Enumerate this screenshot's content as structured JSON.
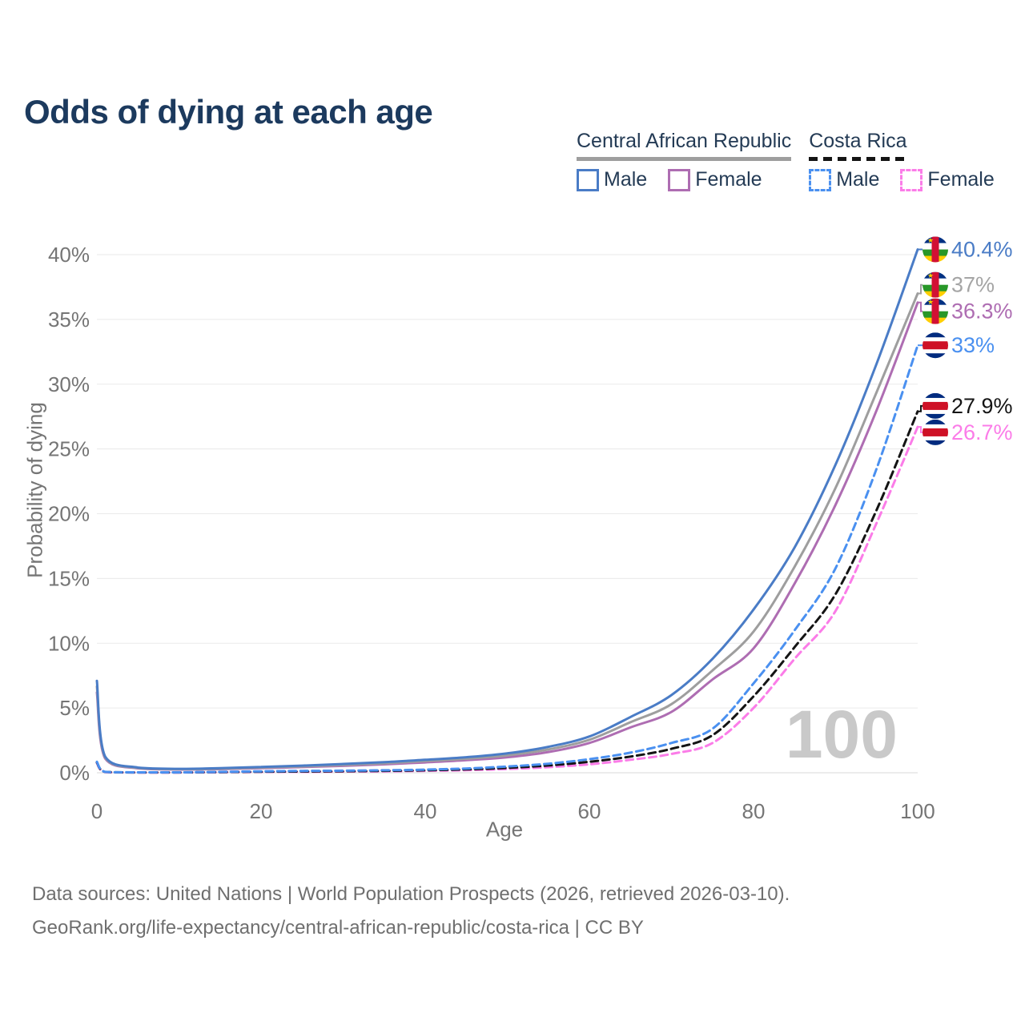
{
  "title": "Odds of dying at each age",
  "legend": {
    "groups": [
      {
        "label": "Central African Republic",
        "items": [
          {
            "label": "Male",
            "swatch": "caf_male"
          },
          {
            "label": "Female",
            "swatch": "caf_female"
          }
        ]
      },
      {
        "label": "Costa Rica",
        "items": [
          {
            "label": "Male",
            "swatch": "cri_male"
          },
          {
            "label": "Female",
            "swatch": "cri_female"
          }
        ]
      }
    ]
  },
  "watermark": "100",
  "footer": {
    "line1": "Data sources: United Nations | World Population Prospects (2026, retrieved 2026-03-10).",
    "line2": "GeoRank.org/life-expectancy/central-african-republic/costa-rica | CC BY"
  },
  "colors": {
    "caf_male": "#4a7cc6",
    "caf_both": "#9e9e9e",
    "caf_female": "#ae6db2",
    "cri_male": "#4a90f0",
    "cri_both": "#141414",
    "cri_female": "#fb7ce8",
    "title": "#1c3a5e",
    "axis_text": "#757575",
    "grid": "#eaeaea",
    "zero_grid": "#d8d8d8",
    "watermark": "#c9c9c9",
    "label_gray": "#a5a5a5"
  },
  "flags": {
    "caf": {
      "stripes": [
        "#003082",
        "#ffffff",
        "#289728",
        "#ffce00"
      ],
      "band": "#d21034",
      "star": "#ffce00"
    },
    "cri": {
      "stripes": [
        "#002b7f",
        "#ffffff",
        "#ce1126",
        "#ffffff",
        "#002b7f"
      ]
    }
  },
  "chart_data": {
    "type": "line",
    "title": "Odds of dying at each age",
    "xlabel": "Age",
    "ylabel": "Probability of dying",
    "xlim": [
      0,
      100
    ],
    "ylim": [
      0,
      40.5
    ],
    "x_ticks": [
      0,
      20,
      40,
      60,
      80,
      100
    ],
    "y_ticks": [
      0,
      5,
      10,
      15,
      20,
      25,
      30,
      35,
      40
    ],
    "y_tick_suffix": "%",
    "grid": true,
    "legend_position": "top-right",
    "x": [
      0,
      1,
      5,
      10,
      15,
      20,
      25,
      30,
      35,
      40,
      45,
      50,
      55,
      60,
      65,
      70,
      75,
      80,
      85,
      90,
      95,
      100
    ],
    "series": [
      {
        "id": "caf-male",
        "name": "Central African Republic — Male",
        "flag": "caf",
        "dashed": false,
        "color": "#4a7cc6",
        "label_color": "#4a7cc6",
        "end_label": "40.4%",
        "values": [
          7.1,
          1.25,
          0.4,
          0.3,
          0.35,
          0.45,
          0.55,
          0.68,
          0.82,
          1.0,
          1.2,
          1.5,
          2.0,
          2.8,
          4.3,
          6.0,
          8.8,
          12.6,
          17.4,
          23.8,
          31.6,
          40.4
        ]
      },
      {
        "id": "caf-both",
        "name": "Central African Republic — Both sexes",
        "flag": "caf",
        "dashed": false,
        "color": "#9e9e9e",
        "label_color": "#a5a5a5",
        "end_label": "37%",
        "values": [
          6.65,
          1.18,
          0.37,
          0.27,
          0.31,
          0.4,
          0.49,
          0.6,
          0.73,
          0.9,
          1.08,
          1.35,
          1.8,
          2.55,
          3.9,
          5.3,
          7.9,
          10.9,
          15.9,
          22.0,
          29.4,
          37.0
        ]
      },
      {
        "id": "caf-female",
        "name": "Central African Republic — Female",
        "flag": "caf",
        "dashed": false,
        "color": "#ae6db2",
        "label_color": "#ae6db2",
        "end_label": "36.3%",
        "values": [
          6.2,
          1.1,
          0.34,
          0.25,
          0.28,
          0.35,
          0.44,
          0.53,
          0.65,
          0.8,
          0.97,
          1.2,
          1.6,
          2.3,
          3.5,
          4.7,
          7.2,
          9.6,
          14.6,
          20.7,
          28.0,
          36.3
        ]
      },
      {
        "id": "cri-male",
        "name": "Costa Rica — Male",
        "flag": "cri",
        "dashed": true,
        "color": "#4a90f0",
        "label_color": "#4a90f0",
        "end_label": "33%",
        "values": [
          0.85,
          0.07,
          0.03,
          0.03,
          0.07,
          0.11,
          0.14,
          0.16,
          0.19,
          0.24,
          0.33,
          0.48,
          0.7,
          1.05,
          1.55,
          2.3,
          3.4,
          6.9,
          11.0,
          15.8,
          23.5,
          33.0
        ]
      },
      {
        "id": "cri-both",
        "name": "Costa Rica — Both sexes",
        "flag": "cri",
        "dashed": true,
        "color": "#141414",
        "label_color": "#141414",
        "end_label": "27.9%",
        "values": [
          0.8,
          0.06,
          0.025,
          0.025,
          0.05,
          0.08,
          0.1,
          0.12,
          0.15,
          0.19,
          0.26,
          0.38,
          0.56,
          0.85,
          1.25,
          1.85,
          2.9,
          5.9,
          9.7,
          13.8,
          20.3,
          27.9
        ]
      },
      {
        "id": "cri-female",
        "name": "Costa Rica — Female",
        "flag": "cri",
        "dashed": true,
        "color": "#fb7ce8",
        "label_color": "#fb7ce8",
        "end_label": "26.7%",
        "values": [
          0.75,
          0.05,
          0.02,
          0.02,
          0.04,
          0.06,
          0.07,
          0.09,
          0.11,
          0.15,
          0.2,
          0.29,
          0.43,
          0.65,
          1.0,
          1.45,
          2.3,
          5.0,
          8.8,
          12.5,
          19.3,
          26.7
        ]
      }
    ]
  }
}
